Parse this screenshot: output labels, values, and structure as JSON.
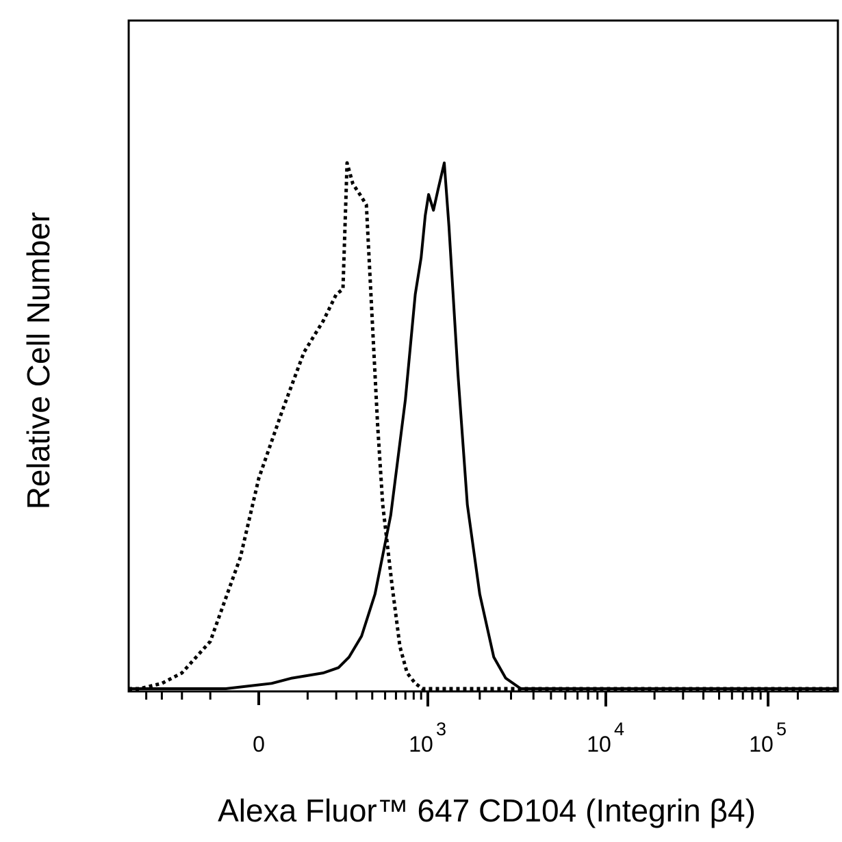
{
  "chart_data": {
    "type": "line",
    "title": "",
    "xlabel": "Alexa Fluor™ 647 CD104 (Integrin β4)",
    "ylabel": "Relative Cell Number",
    "x_scale": "biexponential",
    "x_ticks": [
      {
        "label": "0",
        "value": 0
      },
      {
        "label": "10",
        "sup": "3",
        "value": 1000
      },
      {
        "label": "10",
        "sup": "4",
        "value": 10000
      },
      {
        "label": "10",
        "sup": "5",
        "value": 100000
      }
    ],
    "xlim": [
      -500,
      180000
    ],
    "ylim": [
      0,
      100
    ],
    "grid": false,
    "legend": "none",
    "series": [
      {
        "line_style": "dotted",
        "color": "#000000",
        "x": [
          -450,
          -300,
          -200,
          -100,
          -30,
          0,
          40,
          90,
          150,
          200,
          230,
          250,
          280,
          320,
          360,
          400,
          440,
          480,
          560,
          640,
          720,
          820,
          920
        ],
        "y": [
          0,
          1,
          3,
          9,
          25,
          40,
          53,
          64,
          70,
          75,
          76,
          100,
          96,
          94,
          92,
          70,
          50,
          35,
          20,
          8,
          3,
          1,
          0
        ]
      },
      {
        "line_style": "solid",
        "color": "#000000",
        "x": [
          -60,
          20,
          60,
          150,
          210,
          260,
          330,
          420,
          550,
          700,
          820,
          900,
          960,
          1010,
          1080,
          1150,
          1250,
          1330,
          1500,
          1700,
          2000,
          2400,
          2800,
          3400
        ],
        "y": [
          0,
          1,
          2,
          3,
          4,
          6,
          10,
          18,
          33,
          55,
          75,
          82,
          90,
          94,
          91,
          95,
          100,
          88,
          60,
          35,
          18,
          6,
          2,
          0
        ]
      }
    ]
  }
}
